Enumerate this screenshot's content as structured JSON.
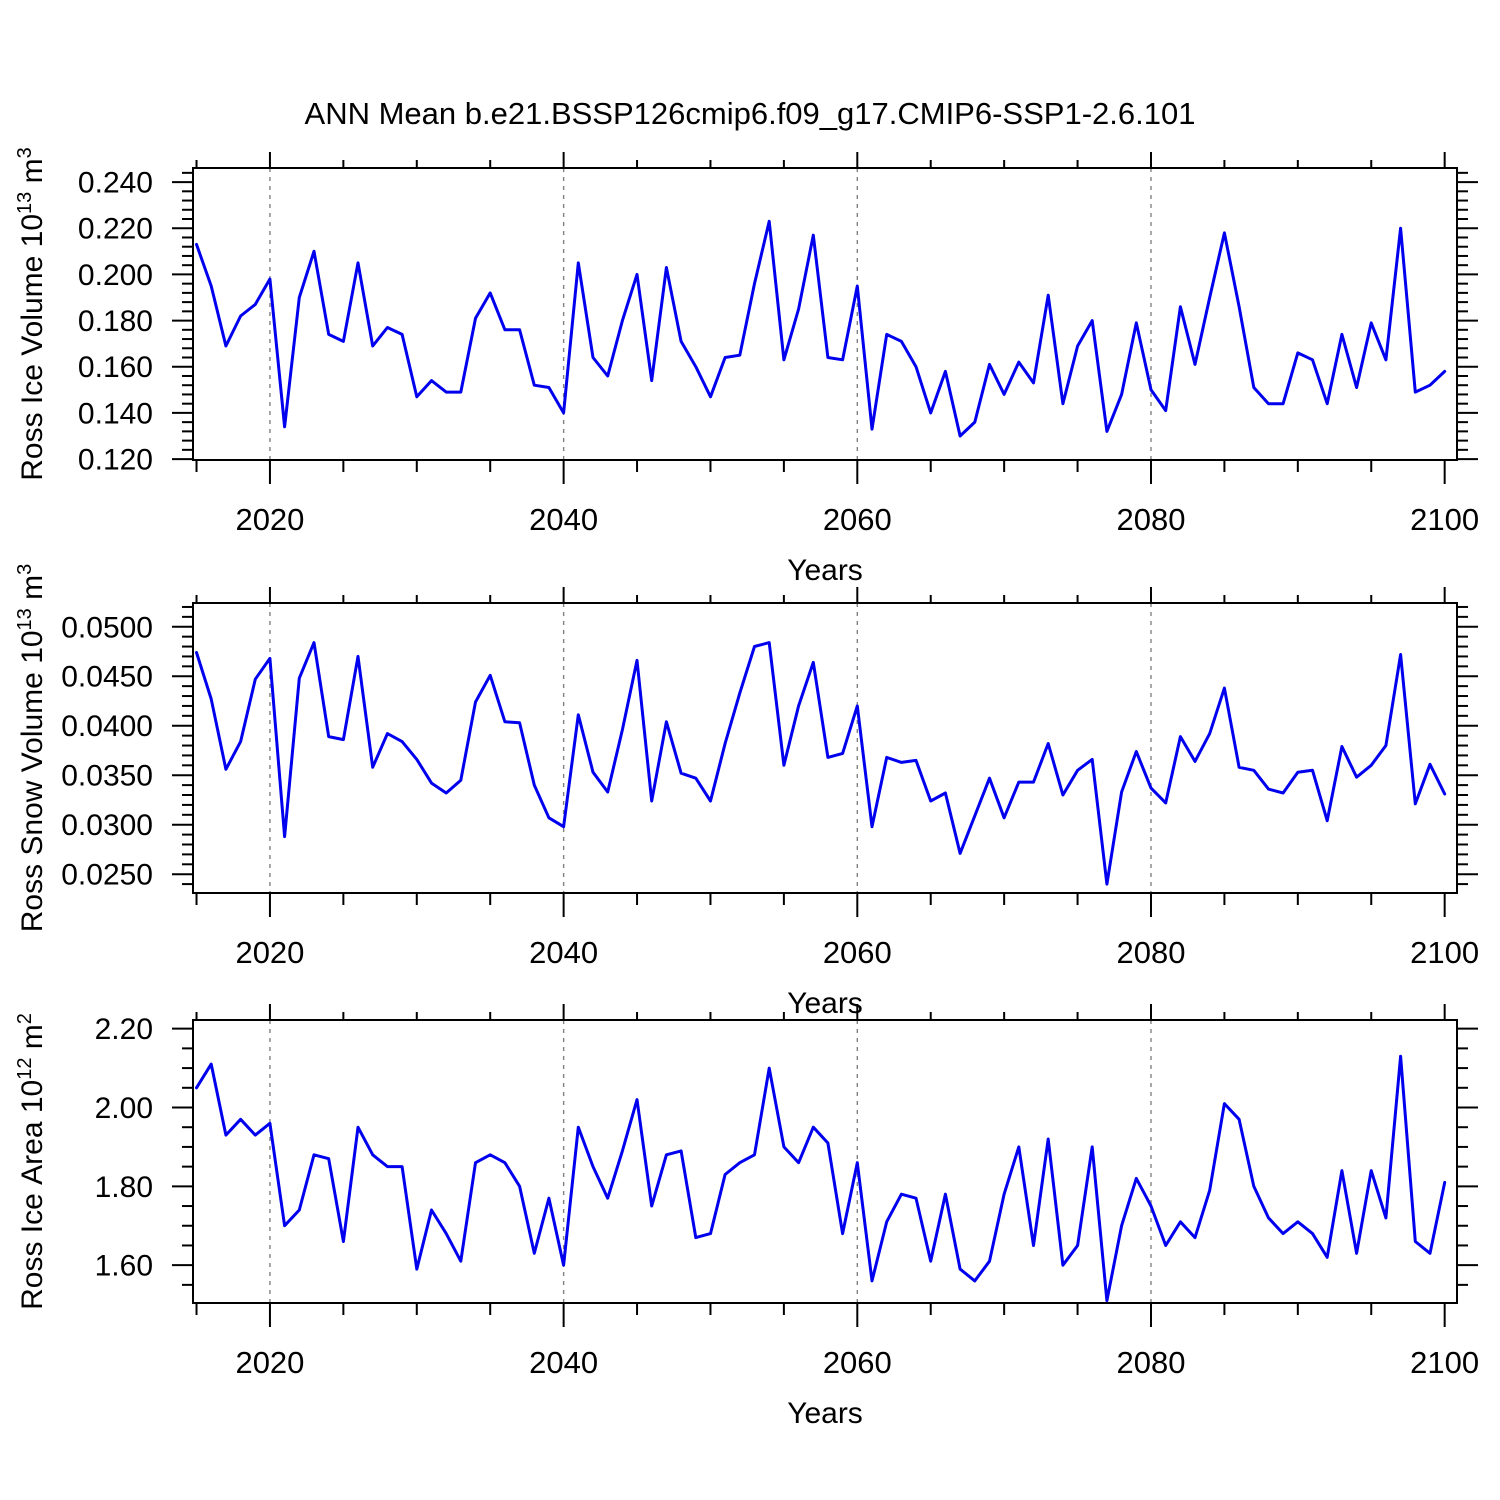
{
  "title": "ANN Mean b.e21.BSSP126cmip6.f09_g17.CMIP6-SSP1-2.6.101",
  "line_color": "#0000EE",
  "grid_color": "#828282",
  "years": [
    2015,
    2016,
    2017,
    2018,
    2019,
    2020,
    2021,
    2022,
    2023,
    2024,
    2025,
    2026,
    2027,
    2028,
    2029,
    2030,
    2031,
    2032,
    2033,
    2034,
    2035,
    2036,
    2037,
    2038,
    2039,
    2040,
    2041,
    2042,
    2043,
    2044,
    2045,
    2046,
    2047,
    2048,
    2049,
    2050,
    2051,
    2052,
    2053,
    2054,
    2055,
    2056,
    2057,
    2058,
    2059,
    2060,
    2061,
    2062,
    2063,
    2064,
    2065,
    2066,
    2067,
    2068,
    2069,
    2070,
    2071,
    2072,
    2073,
    2074,
    2075,
    2076,
    2077,
    2078,
    2079,
    2080,
    2081,
    2082,
    2083,
    2084,
    2085,
    2086,
    2087,
    2088,
    2089,
    2090,
    2091,
    2092,
    2093,
    2094,
    2095,
    2096,
    2097,
    2098,
    2099,
    2100
  ],
  "chart_data": [
    {
      "type": "line",
      "title": "ANN Mean b.e21.BSSP126cmip6.f09_g17.CMIP6-SSP1-2.6.101",
      "xlabel": "Years",
      "ylabel_parts": [
        {
          "t": "Ross Ice Volume 10"
        },
        {
          "t": "13",
          "sup": true
        },
        {
          "t": " m"
        },
        {
          "t": "3",
          "sup": true
        }
      ],
      "xlim": [
        2014.76,
        2100.84
      ],
      "ylim": [
        0.1196,
        0.2461
      ],
      "xticks": [
        2020,
        2040,
        2060,
        2080,
        2100
      ],
      "xtick_labels": [
        "2020",
        "2040",
        "2060",
        "2080",
        "2100"
      ],
      "xminor_step": 5,
      "grid_x": [
        2020,
        2040,
        2060,
        2080
      ],
      "ytick_values": [
        0.12,
        0.14,
        0.16,
        0.18,
        0.2,
        0.22,
        0.24
      ],
      "ytick_labels": [
        "0.120",
        "0.140",
        "0.160",
        "0.180",
        "0.200",
        "0.220",
        "0.240"
      ],
      "yminor_step": 0.004,
      "values": [
        0.213,
        0.195,
        0.169,
        0.182,
        0.187,
        0.198,
        0.134,
        0.19,
        0.21,
        0.174,
        0.171,
        0.205,
        0.169,
        0.177,
        0.174,
        0.147,
        0.154,
        0.149,
        0.149,
        0.181,
        0.192,
        0.176,
        0.176,
        0.152,
        0.151,
        0.14,
        0.205,
        0.164,
        0.156,
        0.18,
        0.2,
        0.154,
        0.203,
        0.171,
        0.16,
        0.147,
        0.164,
        0.165,
        0.196,
        0.223,
        0.163,
        0.185,
        0.217,
        0.164,
        0.163,
        0.195,
        0.133,
        0.174,
        0.171,
        0.16,
        0.14,
        0.158,
        0.13,
        0.136,
        0.161,
        0.148,
        0.162,
        0.153,
        0.191,
        0.144,
        0.169,
        0.18,
        0.132,
        0.148,
        0.179,
        0.15,
        0.141,
        0.186,
        0.161,
        0.19,
        0.218,
        0.186,
        0.151,
        0.144,
        0.144,
        0.166,
        0.163,
        0.144,
        0.174,
        0.151,
        0.179,
        0.163,
        0.22,
        0.149,
        0.152,
        0.158
      ]
    },
    {
      "type": "line",
      "xlabel": "Years",
      "ylabel_parts": [
        {
          "t": "Ross Snow Volume 10"
        },
        {
          "t": "13",
          "sup": true
        },
        {
          "t": " m"
        },
        {
          "t": "3",
          "sup": true
        }
      ],
      "xlim": [
        2014.76,
        2100.84
      ],
      "ylim": [
        0.0231,
        0.0524
      ],
      "xticks": [
        2020,
        2040,
        2060,
        2080,
        2100
      ],
      "xtick_labels": [
        "2020",
        "2040",
        "2060",
        "2080",
        "2100"
      ],
      "xminor_step": 5,
      "grid_x": [
        2020,
        2040,
        2060,
        2080
      ],
      "ytick_values": [
        0.025,
        0.03,
        0.035,
        0.04,
        0.045,
        0.05
      ],
      "ytick_labels": [
        "0.0250",
        "0.0300",
        "0.0350",
        "0.0400",
        "0.0450",
        "0.0500"
      ],
      "yminor_step": 0.001,
      "values": [
        0.0474,
        0.0427,
        0.0356,
        0.0384,
        0.0447,
        0.0468,
        0.0288,
        0.0448,
        0.0484,
        0.0389,
        0.0386,
        0.047,
        0.0358,
        0.0392,
        0.0384,
        0.0366,
        0.0342,
        0.0332,
        0.0345,
        0.0424,
        0.0451,
        0.0404,
        0.0403,
        0.034,
        0.0307,
        0.0298,
        0.0411,
        0.0353,
        0.0333,
        0.0396,
        0.0466,
        0.0324,
        0.0404,
        0.0352,
        0.0347,
        0.0324,
        0.0382,
        0.0433,
        0.048,
        0.0484,
        0.036,
        0.042,
        0.0464,
        0.0368,
        0.0372,
        0.042,
        0.0298,
        0.0368,
        0.0363,
        0.0365,
        0.0324,
        0.0332,
        0.0271,
        0.0309,
        0.0347,
        0.0307,
        0.0343,
        0.0343,
        0.0382,
        0.033,
        0.0355,
        0.0366,
        0.024,
        0.0333,
        0.0374,
        0.0337,
        0.0322,
        0.0389,
        0.0364,
        0.0392,
        0.0438,
        0.0358,
        0.0355,
        0.0336,
        0.0332,
        0.0353,
        0.0355,
        0.0304,
        0.0379,
        0.0348,
        0.036,
        0.038,
        0.0472,
        0.0321,
        0.0361,
        0.0331
      ]
    },
    {
      "type": "line",
      "xlabel": "Years",
      "ylabel_parts": [
        {
          "t": "Ross Ice Area 10"
        },
        {
          "t": "12",
          "sup": true
        },
        {
          "t": " m"
        },
        {
          "t": "2",
          "sup": true
        }
      ],
      "xlim": [
        2014.76,
        2100.84
      ],
      "ylim": [
        1.504,
        2.222
      ],
      "xticks": [
        2020,
        2040,
        2060,
        2080,
        2100
      ],
      "xtick_labels": [
        "2020",
        "2040",
        "2060",
        "2080",
        "2100"
      ],
      "xminor_step": 5,
      "grid_x": [
        2020,
        2040,
        2060,
        2080
      ],
      "ytick_values": [
        1.6,
        1.8,
        2.0,
        2.2
      ],
      "ytick_labels": [
        "1.60",
        "1.80",
        "2.00",
        "2.20"
      ],
      "yminor_step": 0.05,
      "values": [
        2.05,
        2.11,
        1.93,
        1.97,
        1.93,
        1.96,
        1.7,
        1.74,
        1.88,
        1.87,
        1.66,
        1.95,
        1.88,
        1.85,
        1.85,
        1.59,
        1.74,
        1.68,
        1.61,
        1.86,
        1.88,
        1.86,
        1.8,
        1.63,
        1.77,
        1.6,
        1.95,
        1.85,
        1.77,
        1.89,
        2.02,
        1.75,
        1.88,
        1.89,
        1.67,
        1.68,
        1.83,
        1.86,
        1.88,
        2.1,
        1.9,
        1.86,
        1.95,
        1.91,
        1.68,
        1.86,
        1.56,
        1.71,
        1.78,
        1.77,
        1.61,
        1.78,
        1.59,
        1.56,
        1.61,
        1.78,
        1.9,
        1.65,
        1.92,
        1.6,
        1.65,
        1.9,
        1.51,
        1.7,
        1.82,
        1.75,
        1.65,
        1.71,
        1.67,
        1.79,
        2.01,
        1.97,
        1.8,
        1.72,
        1.68,
        1.71,
        1.68,
        1.62,
        1.84,
        1.63,
        1.84,
        1.72,
        2.13,
        1.66,
        1.63,
        1.81
      ]
    }
  ]
}
